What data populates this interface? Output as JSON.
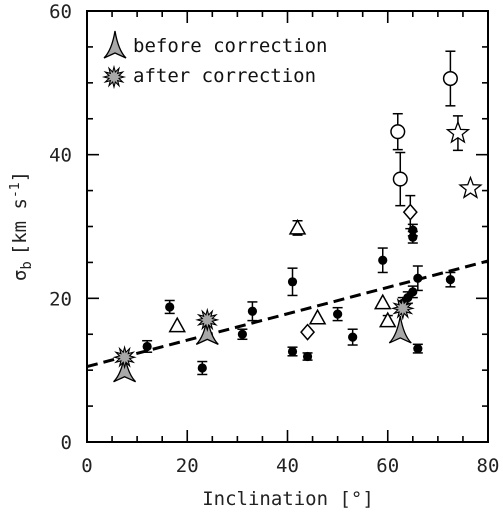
{
  "chart_data": {
    "type": "scatter",
    "xlabel": "Inclination [°]",
    "ylabel_main": "σ",
    "ylabel_sub": "b",
    "ylabel_unit": "[km s",
    "ylabel_exp": "-1",
    "ylabel_close": "]",
    "xlim": [
      0,
      80
    ],
    "ylim": [
      0,
      60
    ],
    "xticks": [
      0,
      20,
      40,
      60,
      80
    ],
    "yticks": [
      0,
      20,
      40,
      60
    ],
    "legend": {
      "placement": "top-left",
      "entries": [
        {
          "label": "before correction",
          "marker": "arrowhead"
        },
        {
          "label": "after correction",
          "marker": "starburst"
        }
      ]
    },
    "fit_line": {
      "style": "dashed",
      "x": [
        0,
        80
      ],
      "y": [
        10.5,
        25.2
      ]
    },
    "series": [
      {
        "marker": "filled-circle",
        "points": [
          {
            "x": 12,
            "y": 13.3,
            "err": 0.8
          },
          {
            "x": 16.5,
            "y": 18.8,
            "err": 0.9
          },
          {
            "x": 23,
            "y": 10.3,
            "err": 0.9
          },
          {
            "x": 31,
            "y": 15.0,
            "err": 0.7
          },
          {
            "x": 33,
            "y": 18.2,
            "err": 1.3
          },
          {
            "x": 41,
            "y": 22.3,
            "err": 1.9
          },
          {
            "x": 41,
            "y": 12.6,
            "err": 0.6
          },
          {
            "x": 44,
            "y": 11.9,
            "err": 0.5
          },
          {
            "x": 50,
            "y": 17.8,
            "err": 0.9
          },
          {
            "x": 53,
            "y": 14.6,
            "err": 1.1
          },
          {
            "x": 59,
            "y": 25.3,
            "err": 1.7
          },
          {
            "x": 63,
            "y": 19.3,
            "err": 0.8
          },
          {
            "x": 64,
            "y": 20.1,
            "err": 0.8
          },
          {
            "x": 65,
            "y": 20.9,
            "err": 0.8
          },
          {
            "x": 65,
            "y": 29.5,
            "err": 0.8
          },
          {
            "x": 65,
            "y": 28.5,
            "err": 0.8
          },
          {
            "x": 66,
            "y": 22.8,
            "err": 1.7
          },
          {
            "x": 66,
            "y": 13.0,
            "err": 0.6
          },
          {
            "x": 72.5,
            "y": 22.6,
            "err": 1.0
          }
        ]
      },
      {
        "marker": "open-triangle",
        "points": [
          {
            "x": 18,
            "y": 16.2,
            "err": 0
          },
          {
            "x": 42,
            "y": 29.8,
            "err": 1.0
          },
          {
            "x": 46,
            "y": 17.3,
            "err": 0
          },
          {
            "x": 59,
            "y": 19.4,
            "err": 0
          },
          {
            "x": 60,
            "y": 16.9,
            "err": 0.7
          }
        ]
      },
      {
        "marker": "open-circle",
        "points": [
          {
            "x": 62,
            "y": 43.2,
            "err": 2.5
          },
          {
            "x": 62.5,
            "y": 36.6,
            "err": 3.7
          },
          {
            "x": 72.5,
            "y": 50.6,
            "err": 3.8
          }
        ]
      },
      {
        "marker": "open-diamond",
        "points": [
          {
            "x": 44,
            "y": 15.3,
            "err": 0
          },
          {
            "x": 64.5,
            "y": 32.0,
            "err": 2.3
          }
        ]
      },
      {
        "marker": "open-star",
        "points": [
          {
            "x": 74,
            "y": 43.0,
            "err": 2.4
          },
          {
            "x": 76.5,
            "y": 35.3,
            "err": 0
          }
        ]
      },
      {
        "marker": "arrowhead",
        "points": [
          {
            "x": 7.5,
            "y": 10.2
          },
          {
            "x": 24,
            "y": 15.4
          },
          {
            "x": 62.5,
            "y": 15.6
          }
        ]
      },
      {
        "marker": "starburst",
        "points": [
          {
            "x": 7.5,
            "y": 11.8
          },
          {
            "x": 24,
            "y": 17.0
          },
          {
            "x": 63,
            "y": 18.6
          }
        ]
      }
    ]
  }
}
